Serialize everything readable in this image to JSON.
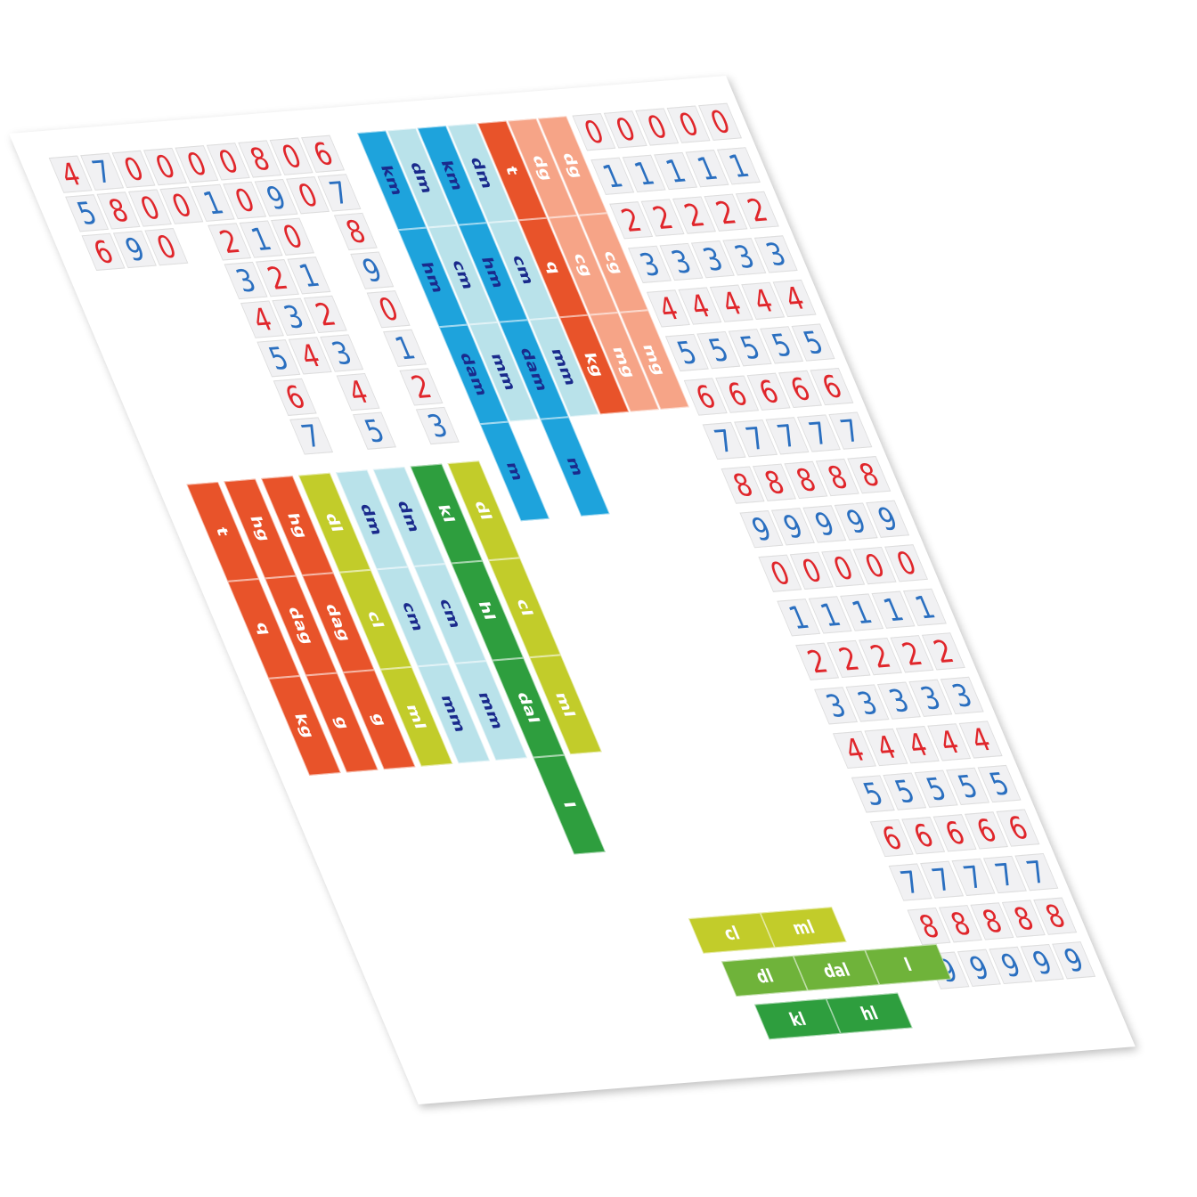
{
  "digit_columns": [
    [
      "4",
      "5",
      "6"
    ],
    [
      "7",
      "8",
      "9"
    ],
    [
      "0",
      "0",
      "0"
    ],
    [
      "0",
      "0"
    ],
    [
      "0",
      "1",
      "2",
      "3",
      "4",
      "5",
      "6",
      "7"
    ],
    [
      "0",
      "0",
      "1",
      "2",
      "3",
      "4"
    ],
    [
      "8",
      "9",
      "0",
      "1",
      "2",
      "3",
      "4",
      "5"
    ],
    [
      "0",
      "0"
    ],
    [
      "6",
      "7",
      "8",
      "9",
      "0",
      "1",
      "2",
      "3"
    ]
  ],
  "digit_grid": [
    [
      "0",
      "0",
      "0",
      "0",
      "0"
    ],
    [
      "1",
      "1",
      "1",
      "1",
      "1"
    ],
    [
      "2",
      "2",
      "2",
      "2",
      "2"
    ],
    [
      "3",
      "3",
      "3",
      "3",
      "3"
    ],
    [
      "4",
      "4",
      "4",
      "4",
      "4"
    ],
    [
      "5",
      "5",
      "5",
      "5",
      "5"
    ],
    [
      "6",
      "6",
      "6",
      "6",
      "6"
    ],
    [
      "7",
      "7",
      "7",
      "7",
      "7"
    ],
    [
      "8",
      "8",
      "8",
      "8",
      "8"
    ],
    [
      "9",
      "9",
      "9",
      "9",
      "9"
    ],
    [
      "0",
      "0",
      "0",
      "0",
      "0"
    ],
    [
      "1",
      "1",
      "1",
      "1",
      "1"
    ],
    [
      "2",
      "2",
      "2",
      "2",
      "2"
    ],
    [
      "3",
      "3",
      "3",
      "3",
      "3"
    ],
    [
      "4",
      "4",
      "4",
      "4",
      "4"
    ],
    [
      "5",
      "5",
      "5",
      "5",
      "5"
    ],
    [
      "6",
      "6",
      "6",
      "6",
      "6"
    ],
    [
      "7",
      "7",
      "7",
      "7",
      "7"
    ],
    [
      "8",
      "8",
      "8",
      "8",
      "8"
    ],
    [
      "9",
      "9",
      "9",
      "9",
      "9"
    ]
  ],
  "vertical_strips": [
    {
      "color": "#e8532a",
      "text_color": "#ffffff",
      "labels": [
        "t",
        "q",
        "kg"
      ]
    },
    {
      "color": "#e8532a",
      "text_color": "#ffffff",
      "labels": [
        "hg",
        "dag",
        "g"
      ]
    },
    {
      "color": "#e8532a",
      "text_color": "#ffffff",
      "labels": [
        "hg",
        "dag",
        "g"
      ]
    },
    {
      "color": "#c2cc2a",
      "text_color": "#ffffff",
      "labels": [
        "dl",
        "cl",
        "ml"
      ]
    },
    {
      "color": "#b9e2ea",
      "text_color": "#1a2a8c",
      "labels": [
        "dm",
        "cm",
        "mm"
      ]
    },
    {
      "color": "#b9e2ea",
      "text_color": "#1a2a8c",
      "labels": [
        "dm",
        "cm",
        "mm"
      ]
    },
    {
      "color": "#2e9e3e",
      "text_color": "#ffffff",
      "labels": [
        "kl",
        "hl",
        "dal",
        "l"
      ]
    },
    {
      "color": "#c2cc2a",
      "text_color": "#ffffff",
      "labels": [
        "dl",
        "cl",
        "ml"
      ]
    },
    {
      "color": "#1ea3dc",
      "text_color": "#1a2a8c",
      "labels": [
        "km",
        "hm",
        "dam",
        "m"
      ]
    },
    {
      "color": "#b9e2ea",
      "text_color": "#1a2a8c",
      "labels": [
        "dm",
        "cm",
        "mm"
      ]
    },
    {
      "color": "#1ea3dc",
      "text_color": "#1a2a8c",
      "labels": [
        "km",
        "hm",
        "dam",
        "m"
      ]
    },
    {
      "color": "#b9e2ea",
      "text_color": "#1a2a8c",
      "labels": [
        "dm",
        "cm",
        "mm"
      ]
    },
    {
      "color": "#e8532a",
      "text_color": "#ffffff",
      "labels": [
        "t",
        "q",
        "kg"
      ]
    },
    {
      "color": "#f6a487",
      "text_color": "#ffffff",
      "labels": [
        "dg",
        "cg",
        "mg"
      ]
    },
    {
      "color": "#f6a487",
      "text_color": "#ffffff",
      "labels": [
        "dg",
        "cg",
        "mg"
      ]
    }
  ],
  "horizontal_strips": [
    {
      "color": "#c2cc2a",
      "text_color": "#ffffff",
      "labels": [
        "cl",
        "ml"
      ]
    },
    {
      "color": "#6fb33a",
      "text_color": "#ffffff",
      "labels": [
        "dl",
        "dal",
        "l"
      ]
    },
    {
      "color": "#2e9e3e",
      "text_color": "#ffffff",
      "labels": [
        "kl",
        "hl"
      ]
    }
  ]
}
